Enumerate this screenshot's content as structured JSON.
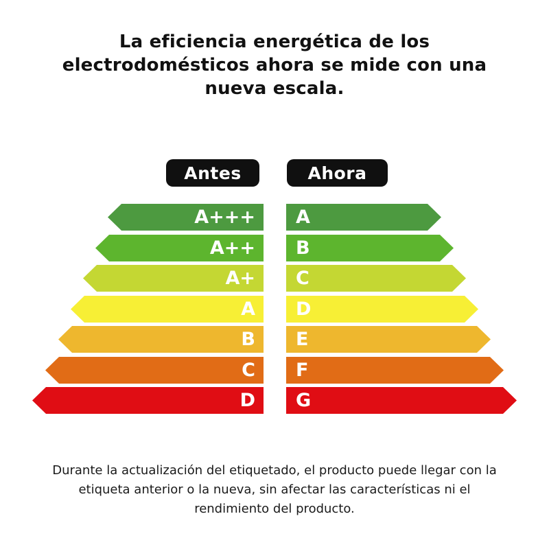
{
  "title": "La eficiencia energética de los\nelectrodomésticos ahora se mide con una\nnueva escala.",
  "legend": {
    "before_label": "Antes",
    "after_label": "Ahora",
    "badge_bg": "#101010",
    "badge_text_color": "#ffffff"
  },
  "scale": {
    "label_text_color": "#ffffff",
    "rows": [
      {
        "old": "A+++",
        "new": "A",
        "color": "#4d9a40"
      },
      {
        "old": "A++",
        "new": "B",
        "color": "#5db52e"
      },
      {
        "old": "A+",
        "new": "C",
        "color": "#c4d733"
      },
      {
        "old": "A",
        "new": "D",
        "color": "#f7ef35"
      },
      {
        "old": "B",
        "new": "E",
        "color": "#eeb72e"
      },
      {
        "old": "C",
        "new": "F",
        "color": "#e16c16"
      },
      {
        "old": "D",
        "new": "G",
        "color": "#e00d14"
      }
    ]
  },
  "footer_note": "Durante la actualización del etiquetado, el producto puede llegar con la\netiqueta anterior o la nueva, sin afectar las características ni el\nrendimiento del producto."
}
